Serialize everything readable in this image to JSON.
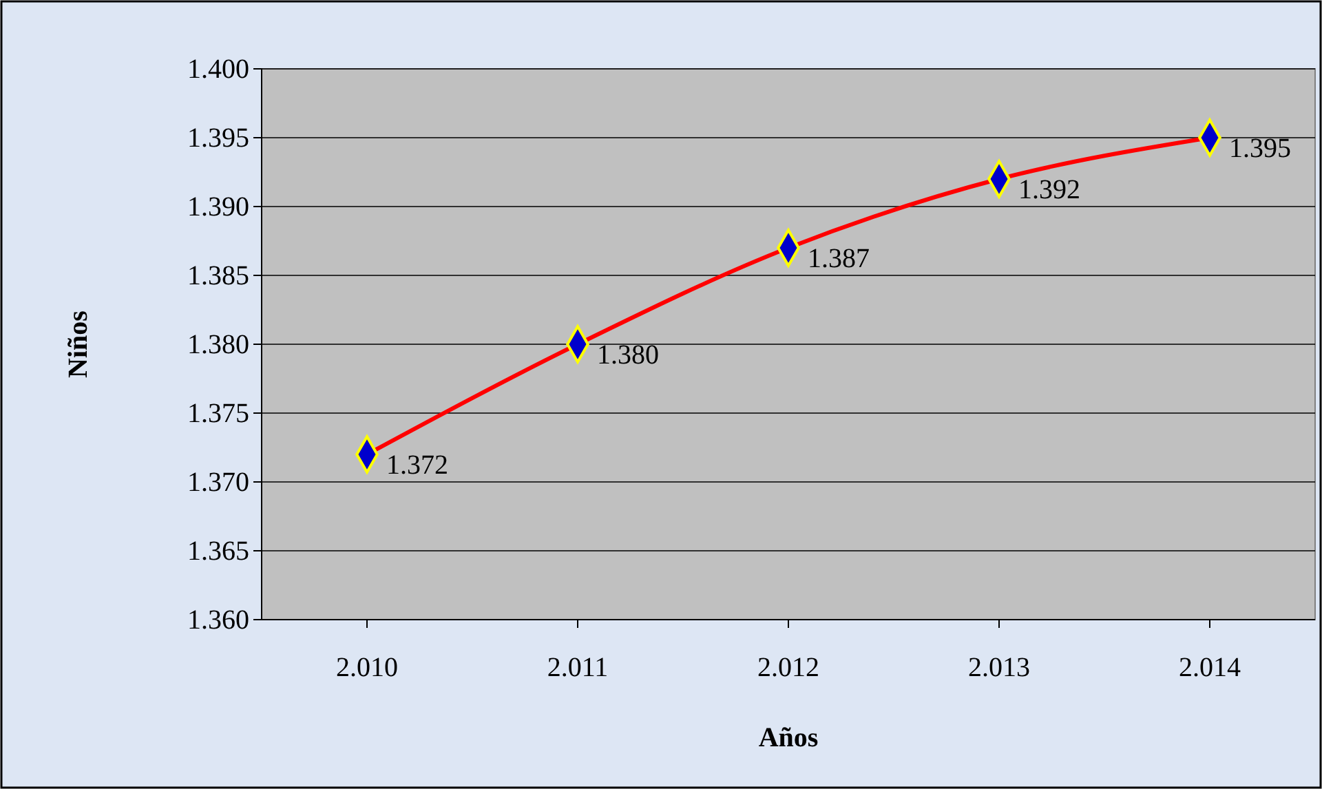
{
  "chart_data": {
    "type": "line",
    "xlabel": "Años",
    "ylabel": "Niños",
    "categories": [
      "2.010",
      "2.011",
      "2.012",
      "2.013",
      "2.014"
    ],
    "series": [
      {
        "color": "#ff0000",
        "values": [
          1372,
          1380,
          1387,
          1392,
          1395
        ],
        "value_labels": [
          "1.372",
          "1.380",
          "1.387",
          "1.392",
          "1.395"
        ]
      }
    ],
    "ylim": [
      1360,
      1400
    ],
    "yticks": [
      {
        "value": 1360,
        "label": "1.360"
      },
      {
        "value": 1365,
        "label": "1.365"
      },
      {
        "value": 1370,
        "label": "1.370"
      },
      {
        "value": 1375,
        "label": "1.375"
      },
      {
        "value": 1380,
        "label": "1.380"
      },
      {
        "value": 1385,
        "label": "1.385"
      },
      {
        "value": 1390,
        "label": "1.390"
      },
      {
        "value": 1395,
        "label": "1.395"
      },
      {
        "value": 1400,
        "label": "1.400"
      }
    ],
    "grid": "y",
    "marker": "diamond",
    "line_style": "solid"
  }
}
